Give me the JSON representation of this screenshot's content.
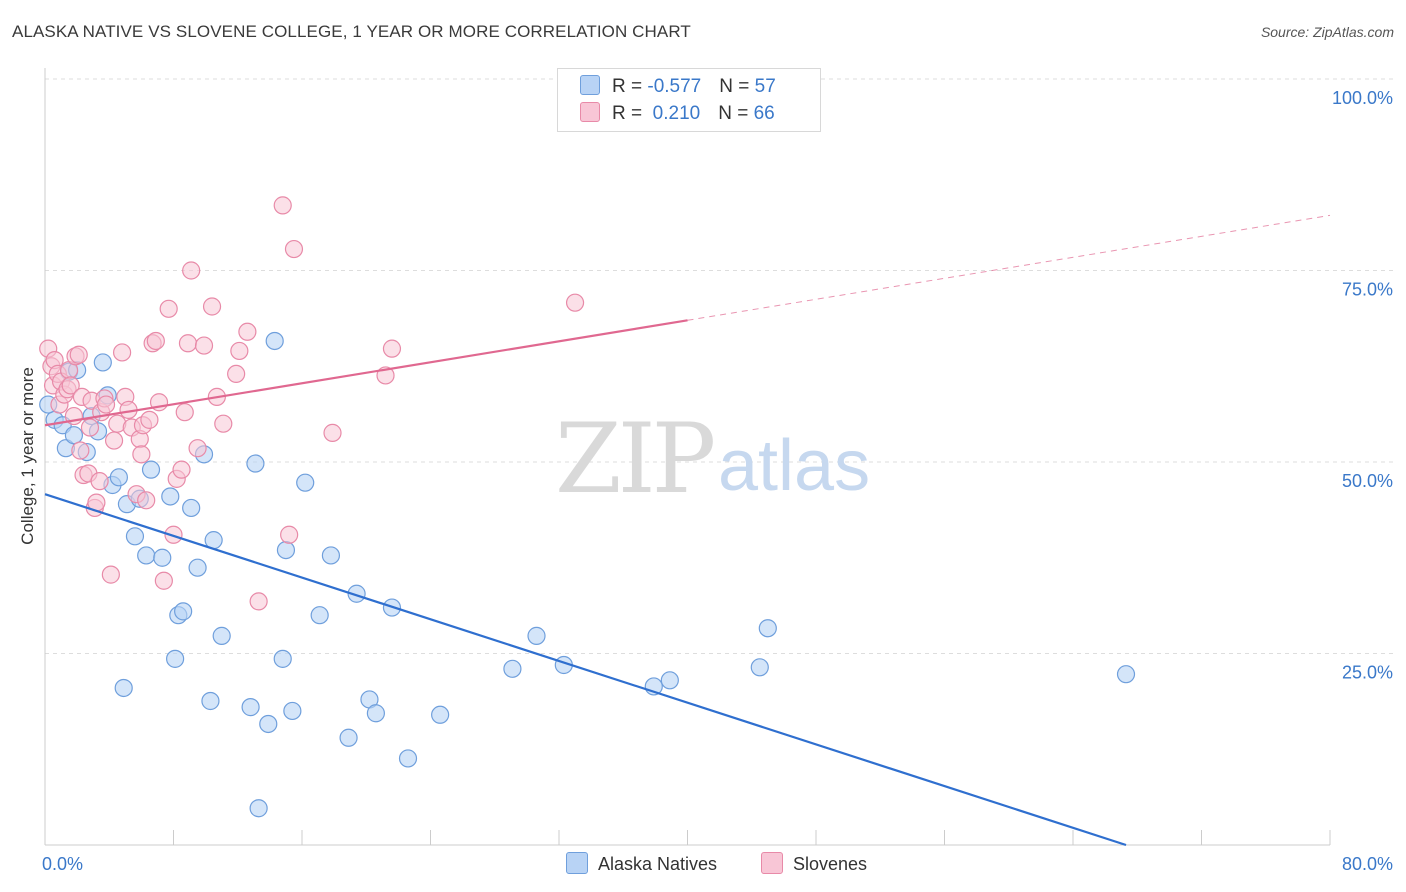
{
  "title": "ALASKA NATIVE VS SLOVENE COLLEGE, 1 YEAR OR MORE CORRELATION CHART",
  "source": "Source: ZipAtlas.com",
  "watermark": {
    "zip": "ZIP",
    "atlas": "atlas"
  },
  "legend": {
    "series1": {
      "r_label": "R = ",
      "r_value": "-0.577",
      "n_label": "N = ",
      "n_value": "57"
    },
    "series2": {
      "r_label": "R = ",
      "r_value": " 0.210",
      "n_label": "N = ",
      "n_value": "66"
    }
  },
  "colors": {
    "blue_fill": "#b8d3f5",
    "blue_stroke": "#6f9fdc",
    "blue_line": "#2f6fcf",
    "pink_fill": "#f8c6d6",
    "pink_stroke": "#e88aa8",
    "pink_line": "#e06890",
    "axis_text": "#3a78c9",
    "grid": "#dddddd"
  },
  "chart_data": {
    "type": "scatter",
    "title": "ALASKA NATIVE VS SLOVENE COLLEGE, 1 YEAR OR MORE CORRELATION CHART",
    "xlabel": "",
    "ylabel": "College, 1 year or more",
    "xlim": [
      0,
      80
    ],
    "ylim": [
      0,
      105
    ],
    "x_tick_labels": [
      "0.0%",
      "80.0%"
    ],
    "y_ticks": [
      25,
      50,
      75,
      100
    ],
    "y_tick_labels": [
      "25.0%",
      "50.0%",
      "75.0%",
      "100.0%"
    ],
    "series": [
      {
        "name": "Alaska Natives",
        "r": -0.577,
        "n": 57,
        "trend": {
          "x0": 0,
          "y0": 45.8,
          "x1": 67.3,
          "y1": 0
        },
        "points": [
          [
            0.6,
            55.5
          ],
          [
            1.1,
            54.8
          ],
          [
            1.3,
            51.8
          ],
          [
            1.5,
            61.8
          ],
          [
            1.8,
            53.5
          ],
          [
            2.6,
            51.3
          ],
          [
            2.9,
            56.0
          ],
          [
            3.3,
            54.0
          ],
          [
            3.6,
            63.0
          ],
          [
            3.9,
            58.7
          ],
          [
            4.2,
            47.0
          ],
          [
            4.6,
            48.0
          ],
          [
            4.9,
            20.5
          ],
          [
            5.1,
            44.5
          ],
          [
            5.6,
            40.3
          ],
          [
            5.9,
            45.2
          ],
          [
            6.3,
            37.8
          ],
          [
            6.6,
            49.0
          ],
          [
            7.3,
            37.5
          ],
          [
            7.8,
            45.5
          ],
          [
            8.1,
            24.3
          ],
          [
            8.3,
            30.0
          ],
          [
            8.6,
            30.5
          ],
          [
            9.1,
            44.0
          ],
          [
            9.5,
            36.2
          ],
          [
            9.9,
            51.0
          ],
          [
            10.3,
            18.8
          ],
          [
            10.5,
            39.8
          ],
          [
            11.0,
            27.3
          ],
          [
            12.8,
            18.0
          ],
          [
            13.1,
            49.8
          ],
          [
            13.3,
            4.8
          ],
          [
            13.9,
            15.8
          ],
          [
            14.3,
            65.8
          ],
          [
            14.8,
            24.3
          ],
          [
            15.0,
            38.5
          ],
          [
            15.4,
            17.5
          ],
          [
            16.2,
            47.3
          ],
          [
            17.1,
            30.0
          ],
          [
            17.8,
            37.8
          ],
          [
            18.9,
            14.0
          ],
          [
            19.4,
            32.8
          ],
          [
            20.2,
            19.0
          ],
          [
            20.6,
            17.2
          ],
          [
            21.6,
            31.0
          ],
          [
            22.6,
            11.3
          ],
          [
            24.6,
            17.0
          ],
          [
            29.1,
            23.0
          ],
          [
            30.6,
            27.3
          ],
          [
            32.3,
            23.5
          ],
          [
            37.9,
            20.7
          ],
          [
            38.9,
            21.5
          ],
          [
            44.5,
            23.2
          ],
          [
            45.0,
            28.3
          ],
          [
            67.3,
            22.3
          ],
          [
            0.2,
            57.5
          ],
          [
            2.0,
            62.0
          ]
        ]
      },
      {
        "name": "Slovenes",
        "r": 0.21,
        "n": 66,
        "trend": {
          "x0": 0,
          "y0": 54.8,
          "x1": 40,
          "y1": 68.5,
          "dash_x1": 80,
          "dash_y1": 82.2
        },
        "points": [
          [
            0.2,
            64.8
          ],
          [
            0.4,
            62.5
          ],
          [
            0.5,
            60.0
          ],
          [
            0.6,
            63.3
          ],
          [
            0.8,
            61.5
          ],
          [
            0.9,
            57.5
          ],
          [
            1.0,
            60.5
          ],
          [
            1.2,
            58.8
          ],
          [
            1.4,
            59.5
          ],
          [
            1.5,
            62.0
          ],
          [
            1.6,
            60.0
          ],
          [
            1.8,
            56.0
          ],
          [
            1.9,
            63.8
          ],
          [
            2.1,
            64.0
          ],
          [
            2.2,
            51.5
          ],
          [
            2.3,
            58.5
          ],
          [
            2.4,
            48.3
          ],
          [
            2.7,
            48.5
          ],
          [
            2.8,
            54.5
          ],
          [
            2.9,
            58.0
          ],
          [
            3.1,
            44.0
          ],
          [
            3.2,
            44.7
          ],
          [
            3.4,
            47.5
          ],
          [
            3.5,
            56.5
          ],
          [
            3.7,
            58.3
          ],
          [
            3.8,
            57.5
          ],
          [
            4.1,
            35.3
          ],
          [
            4.3,
            52.8
          ],
          [
            4.5,
            55.0
          ],
          [
            4.8,
            64.3
          ],
          [
            5.0,
            58.5
          ],
          [
            5.2,
            56.8
          ],
          [
            5.4,
            54.5
          ],
          [
            5.7,
            45.8
          ],
          [
            5.9,
            53.0
          ],
          [
            6.1,
            54.8
          ],
          [
            6.3,
            45.0
          ],
          [
            6.5,
            55.5
          ],
          [
            6.7,
            65.5
          ],
          [
            6.9,
            65.8
          ],
          [
            7.1,
            57.8
          ],
          [
            7.4,
            34.5
          ],
          [
            7.7,
            70.0
          ],
          [
            8.0,
            40.5
          ],
          [
            8.2,
            47.8
          ],
          [
            8.5,
            49.0
          ],
          [
            8.7,
            56.5
          ],
          [
            8.9,
            65.5
          ],
          [
            9.1,
            75.0
          ],
          [
            9.5,
            51.8
          ],
          [
            9.9,
            65.2
          ],
          [
            10.4,
            70.3
          ],
          [
            10.7,
            58.5
          ],
          [
            11.1,
            55.0
          ],
          [
            11.9,
            61.5
          ],
          [
            12.1,
            64.5
          ],
          [
            12.6,
            67.0
          ],
          [
            13.3,
            31.8
          ],
          [
            14.8,
            83.5
          ],
          [
            15.2,
            40.5
          ],
          [
            15.5,
            77.8
          ],
          [
            17.9,
            53.8
          ],
          [
            21.2,
            61.3
          ],
          [
            21.6,
            64.8
          ],
          [
            33.0,
            70.8
          ],
          [
            6.0,
            51.0
          ]
        ]
      }
    ]
  },
  "bottom_legend": [
    "Alaska Natives",
    "Slovenes"
  ]
}
